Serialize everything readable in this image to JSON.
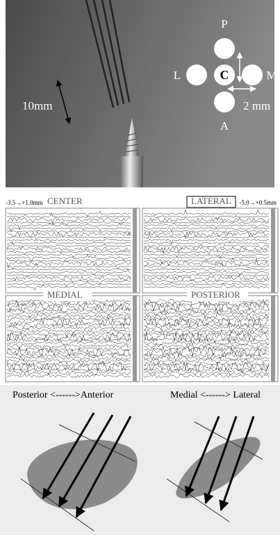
{
  "photo": {
    "labels": {
      "p": "P",
      "l": "L",
      "c": "C",
      "m": "M",
      "a": "A"
    },
    "scale": "10mm",
    "spacing": "2 mm"
  },
  "recordings": {
    "range_left": "-3.5→+1.0mm",
    "range_right": "-5.0→+0.5mm",
    "panels": [
      "CENTER",
      "LATERAL",
      "MEDIAL",
      "POSTERIOR"
    ]
  },
  "diagrams": {
    "left": "Posterior <------>Anterior",
    "right": "Medial <------> Lateral"
  }
}
